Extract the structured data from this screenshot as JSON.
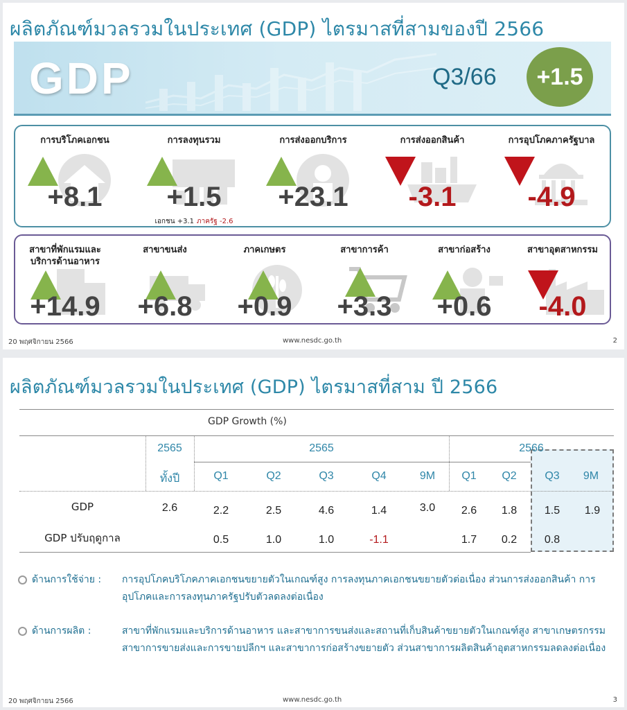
{
  "slide1": {
    "title": "ผลิตภัณฑ์มวลรวมในประเทศ (GDP) ไตรมาสที่สามของปี 2566",
    "banner": {
      "gdp_label": "GDP",
      "quarter": "Q3/66",
      "growth": "+1.5"
    },
    "demand": [
      {
        "label": "การบริโภคเอกชน",
        "value": "+8.1",
        "direction": "up",
        "icon": "house-icon"
      },
      {
        "label": "การลงทุนรวม",
        "value": "+1.5",
        "direction": "up",
        "icon": "handshake-icon",
        "note_private": "เอกชน +3.1",
        "note_gov": "ภาครัฐ -2.6"
      },
      {
        "label": "การส่งออกบริการ",
        "value": "+23.1",
        "direction": "up",
        "icon": "tourist-icon"
      },
      {
        "label": "การส่งออกสินค้า",
        "value": "-3.1",
        "direction": "down",
        "icon": "ship-icon"
      },
      {
        "label": "การอุปโภคภาครัฐบาล",
        "value": "-4.9",
        "direction": "down",
        "icon": "capitol-icon"
      }
    ],
    "production": [
      {
        "label": "สาขาที่พักแรมและบริการด้านอาหาร",
        "value": "+14.9",
        "direction": "up",
        "icon": "hotel-icon"
      },
      {
        "label": "สาขาขนส่ง",
        "value": "+6.8",
        "direction": "up",
        "icon": "truck-icon"
      },
      {
        "label": "ภาคเกษตร",
        "value": "+0.9",
        "direction": "up",
        "icon": "wheat-icon"
      },
      {
        "label": "สาขาการค้า",
        "value": "+3.3",
        "direction": "up",
        "icon": "cart-icon"
      },
      {
        "label": "สาขาก่อสร้าง",
        "value": "+0.6",
        "direction": "up",
        "icon": "worker-icon"
      },
      {
        "label": "สาขาอุตสาหกรรม",
        "value": "-4.0",
        "direction": "down",
        "icon": "factory-icon"
      }
    ],
    "footer": {
      "date": "20 พฤศจิกายน 2566",
      "url": "www.nesdc.go.th",
      "page": "2"
    }
  },
  "slide2": {
    "title": "ผลิตภัณฑ์มวลรวมในประเทศ (GDP) ไตรมาสที่สาม ปี 2566",
    "table": {
      "caption": "GDP Growth (%)",
      "year_annual": "2565",
      "year_a": "2565",
      "year_b": "2566",
      "columns": [
        "ทั้งปี",
        "Q1",
        "Q2",
        "Q3",
        "Q4",
        "9M",
        "Q1",
        "Q2",
        "Q3",
        "9M"
      ],
      "rows": [
        {
          "label": "GDP",
          "values": [
            "2.6",
            "2.2",
            "2.5",
            "4.6",
            "1.4",
            "3.0",
            "2.6",
            "1.8",
            "1.5",
            "1.9"
          ]
        },
        {
          "label": "GDP ปรับฤดูกาล",
          "values": [
            "",
            "0.5",
            "1.0",
            "1.0",
            "-1.1",
            "",
            "1.7",
            "0.2",
            "0.8",
            ""
          ]
        }
      ]
    },
    "bullets": [
      {
        "head": "ด้านการใช้จ่าย :",
        "body": "การอุปโภคบริโภคภาคเอกชนขยายตัวในเกณฑ์สูง การลงทุนภาคเอกชนขยายตัวต่อเนื่อง ส่วนการส่งออกสินค้า การอุปโภคและการลงทุนภาครัฐปรับตัวลดลงต่อเนื่อง"
      },
      {
        "head": "ด้านการผลิต :",
        "body": "สาขาที่พักแรมและบริการด้านอาหาร และสาขาการขนส่งและสถานที่เก็บสินค้าขยายตัวในเกณฑ์สูง สาขาเกษตรกรรม สาขาการขายส่งและการขายปลีกฯ และสาขาการก่อสร้างขยายตัว ส่วนสาขาการผลิตสินค้าอุตสาหกรรมลดลงต่อเนื่อง"
      }
    ],
    "footer": {
      "date": "20 พฤศจิกายน 2566",
      "url": "www.nesdc.go.th",
      "page": "3"
    }
  }
}
